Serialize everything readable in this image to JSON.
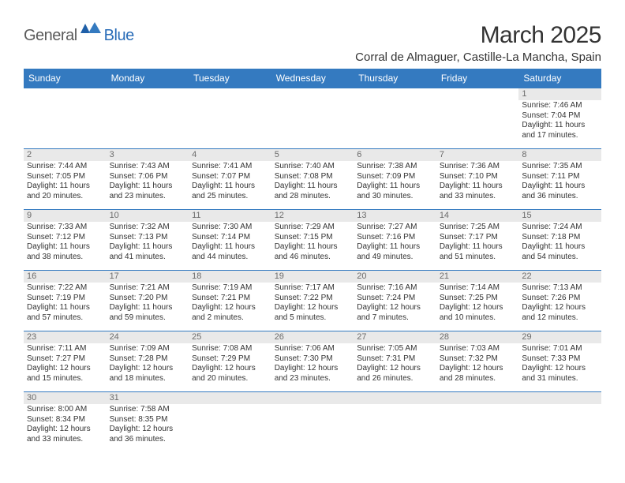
{
  "brand": {
    "name1": "General",
    "name2": "Blue"
  },
  "title": "March 2025",
  "location": "Corral de Almaguer, Castille-La Mancha, Spain",
  "colors": {
    "header_bg": "#347ac0",
    "header_text": "#ffffff",
    "daynum_bg": "#e9e9e9",
    "daynum_text": "#6b6b6b",
    "body_text": "#333333",
    "divider": "#347ac0",
    "logo_gray": "#5b5b5b",
    "logo_blue": "#2a6db8"
  },
  "weekdays": [
    "Sunday",
    "Monday",
    "Tuesday",
    "Wednesday",
    "Thursday",
    "Friday",
    "Saturday"
  ],
  "weeks": [
    [
      {
        "blank": true
      },
      {
        "blank": true
      },
      {
        "blank": true
      },
      {
        "blank": true
      },
      {
        "blank": true
      },
      {
        "blank": true
      },
      {
        "d": "1",
        "sr": "Sunrise: 7:46 AM",
        "ss": "Sunset: 7:04 PM",
        "dl1": "Daylight: 11 hours",
        "dl2": "and 17 minutes."
      }
    ],
    [
      {
        "d": "2",
        "sr": "Sunrise: 7:44 AM",
        "ss": "Sunset: 7:05 PM",
        "dl1": "Daylight: 11 hours",
        "dl2": "and 20 minutes."
      },
      {
        "d": "3",
        "sr": "Sunrise: 7:43 AM",
        "ss": "Sunset: 7:06 PM",
        "dl1": "Daylight: 11 hours",
        "dl2": "and 23 minutes."
      },
      {
        "d": "4",
        "sr": "Sunrise: 7:41 AM",
        "ss": "Sunset: 7:07 PM",
        "dl1": "Daylight: 11 hours",
        "dl2": "and 25 minutes."
      },
      {
        "d": "5",
        "sr": "Sunrise: 7:40 AM",
        "ss": "Sunset: 7:08 PM",
        "dl1": "Daylight: 11 hours",
        "dl2": "and 28 minutes."
      },
      {
        "d": "6",
        "sr": "Sunrise: 7:38 AM",
        "ss": "Sunset: 7:09 PM",
        "dl1": "Daylight: 11 hours",
        "dl2": "and 30 minutes."
      },
      {
        "d": "7",
        "sr": "Sunrise: 7:36 AM",
        "ss": "Sunset: 7:10 PM",
        "dl1": "Daylight: 11 hours",
        "dl2": "and 33 minutes."
      },
      {
        "d": "8",
        "sr": "Sunrise: 7:35 AM",
        "ss": "Sunset: 7:11 PM",
        "dl1": "Daylight: 11 hours",
        "dl2": "and 36 minutes."
      }
    ],
    [
      {
        "d": "9",
        "sr": "Sunrise: 7:33 AM",
        "ss": "Sunset: 7:12 PM",
        "dl1": "Daylight: 11 hours",
        "dl2": "and 38 minutes."
      },
      {
        "d": "10",
        "sr": "Sunrise: 7:32 AM",
        "ss": "Sunset: 7:13 PM",
        "dl1": "Daylight: 11 hours",
        "dl2": "and 41 minutes."
      },
      {
        "d": "11",
        "sr": "Sunrise: 7:30 AM",
        "ss": "Sunset: 7:14 PM",
        "dl1": "Daylight: 11 hours",
        "dl2": "and 44 minutes."
      },
      {
        "d": "12",
        "sr": "Sunrise: 7:29 AM",
        "ss": "Sunset: 7:15 PM",
        "dl1": "Daylight: 11 hours",
        "dl2": "and 46 minutes."
      },
      {
        "d": "13",
        "sr": "Sunrise: 7:27 AM",
        "ss": "Sunset: 7:16 PM",
        "dl1": "Daylight: 11 hours",
        "dl2": "and 49 minutes."
      },
      {
        "d": "14",
        "sr": "Sunrise: 7:25 AM",
        "ss": "Sunset: 7:17 PM",
        "dl1": "Daylight: 11 hours",
        "dl2": "and 51 minutes."
      },
      {
        "d": "15",
        "sr": "Sunrise: 7:24 AM",
        "ss": "Sunset: 7:18 PM",
        "dl1": "Daylight: 11 hours",
        "dl2": "and 54 minutes."
      }
    ],
    [
      {
        "d": "16",
        "sr": "Sunrise: 7:22 AM",
        "ss": "Sunset: 7:19 PM",
        "dl1": "Daylight: 11 hours",
        "dl2": "and 57 minutes."
      },
      {
        "d": "17",
        "sr": "Sunrise: 7:21 AM",
        "ss": "Sunset: 7:20 PM",
        "dl1": "Daylight: 11 hours",
        "dl2": "and 59 minutes."
      },
      {
        "d": "18",
        "sr": "Sunrise: 7:19 AM",
        "ss": "Sunset: 7:21 PM",
        "dl1": "Daylight: 12 hours",
        "dl2": "and 2 minutes."
      },
      {
        "d": "19",
        "sr": "Sunrise: 7:17 AM",
        "ss": "Sunset: 7:22 PM",
        "dl1": "Daylight: 12 hours",
        "dl2": "and 5 minutes."
      },
      {
        "d": "20",
        "sr": "Sunrise: 7:16 AM",
        "ss": "Sunset: 7:24 PM",
        "dl1": "Daylight: 12 hours",
        "dl2": "and 7 minutes."
      },
      {
        "d": "21",
        "sr": "Sunrise: 7:14 AM",
        "ss": "Sunset: 7:25 PM",
        "dl1": "Daylight: 12 hours",
        "dl2": "and 10 minutes."
      },
      {
        "d": "22",
        "sr": "Sunrise: 7:13 AM",
        "ss": "Sunset: 7:26 PM",
        "dl1": "Daylight: 12 hours",
        "dl2": "and 12 minutes."
      }
    ],
    [
      {
        "d": "23",
        "sr": "Sunrise: 7:11 AM",
        "ss": "Sunset: 7:27 PM",
        "dl1": "Daylight: 12 hours",
        "dl2": "and 15 minutes."
      },
      {
        "d": "24",
        "sr": "Sunrise: 7:09 AM",
        "ss": "Sunset: 7:28 PM",
        "dl1": "Daylight: 12 hours",
        "dl2": "and 18 minutes."
      },
      {
        "d": "25",
        "sr": "Sunrise: 7:08 AM",
        "ss": "Sunset: 7:29 PM",
        "dl1": "Daylight: 12 hours",
        "dl2": "and 20 minutes."
      },
      {
        "d": "26",
        "sr": "Sunrise: 7:06 AM",
        "ss": "Sunset: 7:30 PM",
        "dl1": "Daylight: 12 hours",
        "dl2": "and 23 minutes."
      },
      {
        "d": "27",
        "sr": "Sunrise: 7:05 AM",
        "ss": "Sunset: 7:31 PM",
        "dl1": "Daylight: 12 hours",
        "dl2": "and 26 minutes."
      },
      {
        "d": "28",
        "sr": "Sunrise: 7:03 AM",
        "ss": "Sunset: 7:32 PM",
        "dl1": "Daylight: 12 hours",
        "dl2": "and 28 minutes."
      },
      {
        "d": "29",
        "sr": "Sunrise: 7:01 AM",
        "ss": "Sunset: 7:33 PM",
        "dl1": "Daylight: 12 hours",
        "dl2": "and 31 minutes."
      }
    ],
    [
      {
        "d": "30",
        "sr": "Sunrise: 8:00 AM",
        "ss": "Sunset: 8:34 PM",
        "dl1": "Daylight: 12 hours",
        "dl2": "and 33 minutes."
      },
      {
        "d": "31",
        "sr": "Sunrise: 7:58 AM",
        "ss": "Sunset: 8:35 PM",
        "dl1": "Daylight: 12 hours",
        "dl2": "and 36 minutes."
      },
      {
        "blank": true
      },
      {
        "blank": true
      },
      {
        "blank": true
      },
      {
        "blank": true
      },
      {
        "blank": true
      }
    ]
  ]
}
